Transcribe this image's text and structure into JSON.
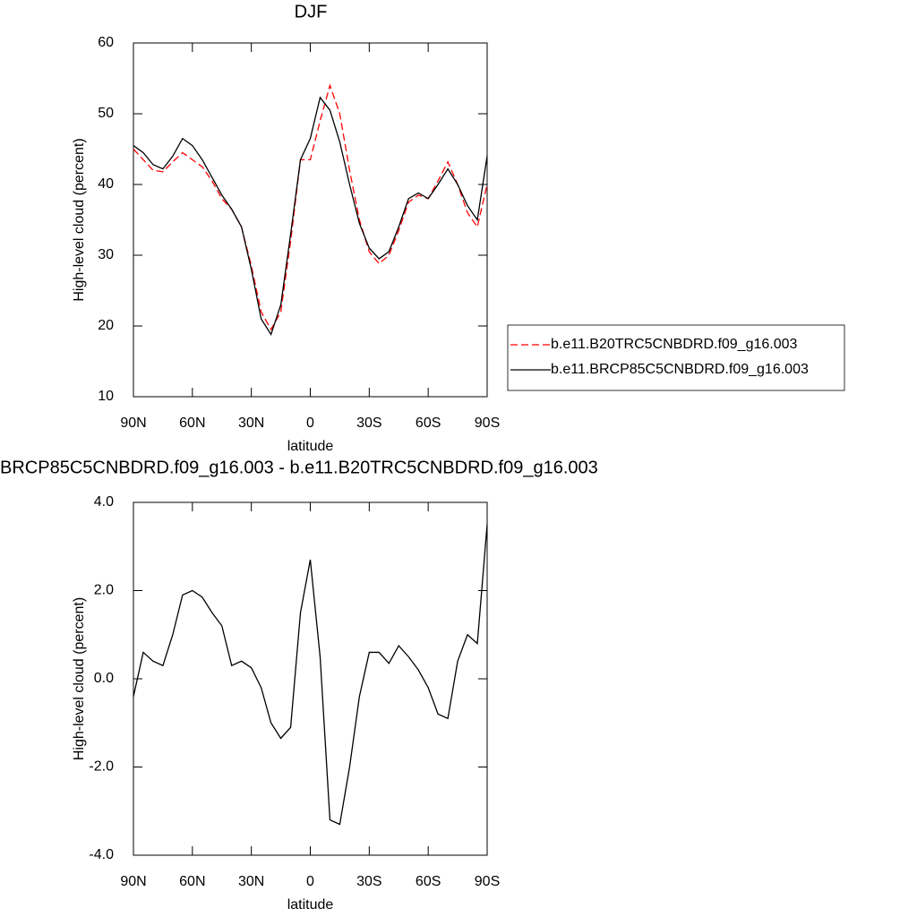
{
  "chart_data": [
    {
      "type": "line",
      "title": "DJF",
      "xlabel": "latitude",
      "ylabel": "High-level cloud (percent)",
      "x": [
        90,
        85,
        80,
        75,
        70,
        65,
        60,
        55,
        50,
        45,
        40,
        35,
        30,
        25,
        20,
        15,
        10,
        5,
        0,
        -5,
        -10,
        -15,
        -20,
        -25,
        -30,
        -35,
        -40,
        -45,
        -50,
        -55,
        -60,
        -65,
        -70,
        -75,
        -80,
        -85,
        -90
      ],
      "series": [
        {
          "name": "b.e11.B20TRC5CNBDRD.f09_g16.003",
          "color": "#ff0000",
          "line_style": "dashed",
          "values": [
            45,
            43.5,
            42,
            41.8,
            43.2,
            44.5,
            43.5,
            42.5,
            40.5,
            38,
            36.5,
            34,
            28.5,
            22,
            19.5,
            22,
            32,
            43.5,
            43.5,
            49,
            54,
            50,
            42,
            35,
            30.5,
            28.8,
            30,
            33.5,
            37.5,
            38.5,
            38,
            40.5,
            43.2,
            40,
            36,
            34,
            40
          ]
        },
        {
          "name": "b.e11.BRCP85C5CNBDRD.f09_g16.003",
          "color": "#000000",
          "line_style": "solid",
          "values": [
            45.5,
            44.5,
            42.8,
            42.2,
            44,
            46.5,
            45.5,
            43.5,
            41,
            38.5,
            36.5,
            34,
            28,
            21,
            18.8,
            23,
            33,
            43.5,
            46.5,
            52.3,
            50.5,
            46,
            40,
            34.5,
            31,
            29.5,
            30.5,
            34,
            38,
            38.8,
            38,
            40,
            42.2,
            40,
            37,
            35,
            44
          ]
        }
      ],
      "xlim": [
        90,
        -90
      ],
      "xticks": [
        {
          "value": 90,
          "label": "90N"
        },
        {
          "value": 60,
          "label": "60N"
        },
        {
          "value": 30,
          "label": "30N"
        },
        0,
        {
          "value": -30,
          "label": "30S"
        },
        {
          "value": -60,
          "label": "60S"
        },
        {
          "value": -90,
          "label": "90S"
        }
      ],
      "ylim": [
        10,
        60
      ],
      "yticks": [
        10,
        20,
        30,
        40,
        50,
        60
      ],
      "legend": "right"
    },
    {
      "type": "line",
      "title": "BRCP85C5CNBDRD.f09_g16.003 - b.e11.B20TRC5CNBDRD.f09_g16.003",
      "xlabel": "latitude",
      "ylabel": "High-level cloud (percent)",
      "x": [
        90,
        85,
        80,
        75,
        70,
        65,
        60,
        55,
        50,
        45,
        40,
        35,
        30,
        25,
        20,
        15,
        10,
        5,
        0,
        -5,
        -10,
        -15,
        -20,
        -25,
        -30,
        -35,
        -40,
        -45,
        -50,
        -55,
        -60,
        -65,
        -70,
        -75,
        -80,
        -85,
        -90
      ],
      "color": "#000000",
      "values": [
        -0.4,
        0.6,
        0.4,
        0.3,
        1.0,
        1.9,
        2.0,
        1.85,
        1.5,
        1.2,
        0.3,
        0.4,
        0.25,
        -0.2,
        -1.0,
        -1.35,
        -1.1,
        1.5,
        2.7,
        0.5,
        -3.2,
        -3.3,
        -2.0,
        -0.4,
        0.6,
        0.6,
        0.35,
        0.75,
        0.5,
        0.2,
        -0.2,
        -0.8,
        -0.9,
        0.4,
        1.0,
        0.8,
        3.5
      ],
      "xlim": [
        90,
        -90
      ],
      "xticks": [
        {
          "value": 90,
          "label": "90N"
        },
        {
          "value": 60,
          "label": "60N"
        },
        {
          "value": 30,
          "label": "30N"
        },
        0,
        {
          "value": -30,
          "label": "30S"
        },
        {
          "value": -60,
          "label": "60S"
        },
        {
          "value": -90,
          "label": "90S"
        }
      ],
      "ylim": [
        -4,
        4
      ],
      "yticks": [
        {
          "value": -4,
          "label": "-4.0"
        },
        {
          "value": -2,
          "label": "-2.0"
        },
        {
          "value": 0,
          "label": "0.0"
        },
        {
          "value": 2,
          "label": "2.0"
        },
        {
          "value": 4,
          "label": "4.0"
        }
      ]
    }
  ]
}
